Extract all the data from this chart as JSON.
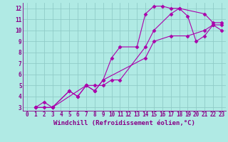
{
  "xlabel": "Windchill (Refroidissement éolien,°C)",
  "bg_color": "#b0eae4",
  "grid_color": "#90ccc8",
  "line_color": "#aa00aa",
  "xlim": [
    -0.5,
    23.5
  ],
  "ylim": [
    2.7,
    12.5
  ],
  "xticks": [
    0,
    1,
    2,
    3,
    4,
    5,
    6,
    7,
    8,
    9,
    10,
    11,
    12,
    13,
    14,
    15,
    16,
    17,
    18,
    19,
    20,
    21,
    22,
    23
  ],
  "yticks": [
    3,
    4,
    5,
    6,
    7,
    8,
    9,
    10,
    11,
    12
  ],
  "line1_x": [
    1,
    2,
    3,
    7,
    8,
    9,
    10,
    11,
    13,
    14,
    15,
    16,
    17,
    18,
    21,
    22,
    23
  ],
  "line1_y": [
    3,
    3,
    3,
    5.0,
    4.5,
    5.5,
    7.5,
    8.5,
    8.5,
    11.5,
    12.2,
    12.2,
    12.0,
    12.0,
    11.5,
    10.7,
    10.7
  ],
  "line2_x": [
    1,
    2,
    3,
    5,
    6,
    7,
    8,
    9,
    10,
    11,
    14,
    15,
    17,
    18,
    19,
    20,
    21,
    22,
    23
  ],
  "line2_y": [
    3,
    3.5,
    3,
    4.5,
    4.0,
    5.0,
    5.0,
    5.0,
    5.5,
    5.5,
    8.5,
    10.0,
    11.5,
    12.0,
    11.3,
    9.0,
    9.5,
    10.5,
    10.5
  ],
  "line3_x": [
    1,
    3,
    5,
    6,
    7,
    8,
    9,
    14,
    15,
    17,
    19,
    21,
    22,
    23
  ],
  "line3_y": [
    3,
    3.0,
    4.5,
    4.0,
    5.0,
    4.5,
    5.5,
    7.5,
    9.0,
    9.5,
    9.5,
    10.0,
    10.5,
    10.0
  ],
  "marker": "D",
  "markersize": 2.5,
  "linewidth": 0.8,
  "tick_fontsize": 5.5,
  "label_fontsize": 6.5,
  "tick_color": "#880088",
  "label_color": "#880088"
}
